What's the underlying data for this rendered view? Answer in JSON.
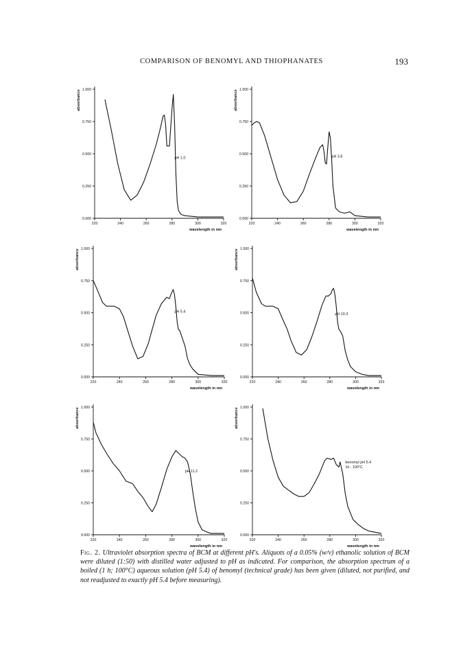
{
  "header": {
    "running_title": "COMPARISON OF BENOMYL AND THIOPHANATES",
    "page_number": "193"
  },
  "caption": {
    "label": "Fig. 2.",
    "text": "Ultraviolet absorption spectra of BCM at different pH's. Aliquots of a 0.05% (w/v) ethanolic solution of BCM were diluted (1:50) with distilled water adjusted to pH as indicated. For comparison, the absorption spectrum of a boiled (1 h; 100°C) aqueous solution (pH 5.4) of benomyl (technical grade) has been given (diluted, not purified, and not readjusted to exactly pH 5.4 before measuring)."
  },
  "style": {
    "line_color": "#111111",
    "axis_color": "#111111"
  },
  "chart_data": [
    {
      "type": "line",
      "panel": "top-left",
      "ylabel": "absorbance",
      "xlabel": "wavelength in nm",
      "xlim": [
        220,
        320
      ],
      "ylim": [
        0,
        1
      ],
      "x_ticks": [
        "220",
        "240",
        "260",
        "280",
        "300",
        "320"
      ],
      "y_ticks": [
        "0.000",
        "0.250",
        "0.500",
        "0.750",
        "1.000"
      ],
      "annotation": [
        "pH 1.0"
      ],
      "annotation_at": [
        282,
        0.46
      ],
      "series": [
        {
          "x": [
            228,
            233,
            238,
            243,
            248,
            253,
            258,
            263,
            268,
            271,
            273,
            274,
            275,
            276,
            278,
            280,
            281,
            282,
            283,
            284,
            285,
            287,
            290,
            300,
            310,
            320
          ],
          "y": [
            0.92,
            0.68,
            0.42,
            0.22,
            0.14,
            0.18,
            0.28,
            0.42,
            0.58,
            0.7,
            0.79,
            0.8,
            0.73,
            0.56,
            0.56,
            0.85,
            0.96,
            0.72,
            0.35,
            0.13,
            0.06,
            0.03,
            0.02,
            0.01,
            0.01,
            0.01
          ]
        }
      ]
    },
    {
      "type": "line",
      "panel": "top-right",
      "ylabel": "absorbance",
      "xlabel": "wavelength in nm",
      "xlim": [
        220,
        320
      ],
      "ylim": [
        0,
        1
      ],
      "x_ticks": [
        "220",
        "240",
        "260",
        "280",
        "300",
        "320"
      ],
      "y_ticks": [
        "0.000",
        "0.250",
        "0.500",
        "0.750",
        "1.000"
      ],
      "annotation": [
        "pH 3.8"
      ],
      "annotation_at": [
        282,
        0.47
      ],
      "series": [
        {
          "x": [
            220,
            222,
            224,
            226,
            230,
            235,
            240,
            245,
            250,
            255,
            260,
            265,
            270,
            273,
            275,
            276,
            277,
            278,
            279,
            280,
            281,
            282,
            283,
            285,
            288,
            292,
            296,
            300,
            310,
            320
          ],
          "y": [
            0.72,
            0.74,
            0.75,
            0.74,
            0.64,
            0.47,
            0.3,
            0.18,
            0.12,
            0.13,
            0.21,
            0.35,
            0.48,
            0.55,
            0.57,
            0.52,
            0.43,
            0.42,
            0.55,
            0.67,
            0.62,
            0.45,
            0.25,
            0.08,
            0.05,
            0.04,
            0.05,
            0.02,
            0.01,
            0.01
          ]
        }
      ]
    },
    {
      "type": "line",
      "panel": "middle-left",
      "ylabel": "absorbance",
      "xlabel": "wavelength in nm",
      "xlim": [
        220,
        320
      ],
      "ylim": [
        0,
        1
      ],
      "x_ticks": [
        "220",
        "240",
        "260",
        "280",
        "300",
        "320"
      ],
      "y_ticks": [
        "0.000",
        "0.250",
        "0.500",
        "0.750",
        "1.000"
      ],
      "annotation": [
        "pH 5.4"
      ],
      "annotation_at": [
        282,
        0.5
      ],
      "series": [
        {
          "x": [
            220,
            223,
            227,
            230,
            233,
            236,
            240,
            243,
            246,
            250,
            254,
            258,
            262,
            265,
            268,
            272,
            276,
            278,
            280,
            281,
            282,
            283,
            284,
            285,
            286,
            287,
            288,
            290,
            292,
            294,
            296,
            300,
            310,
            320
          ],
          "y": [
            0.75,
            0.68,
            0.58,
            0.55,
            0.55,
            0.55,
            0.53,
            0.47,
            0.37,
            0.24,
            0.14,
            0.16,
            0.26,
            0.37,
            0.48,
            0.57,
            0.62,
            0.61,
            0.66,
            0.68,
            0.64,
            0.55,
            0.43,
            0.37,
            0.36,
            0.33,
            0.3,
            0.24,
            0.14,
            0.09,
            0.06,
            0.02,
            0.01,
            0.01
          ]
        }
      ]
    },
    {
      "type": "line",
      "panel": "middle-right",
      "ylabel": "absorbance",
      "xlabel": "wavelength in nm",
      "xlim": [
        220,
        320
      ],
      "ylim": [
        0,
        1
      ],
      "x_ticks": [
        "220",
        "240",
        "260",
        "280",
        "300",
        "320"
      ],
      "y_ticks": [
        "0.000",
        "0.250",
        "0.500",
        "0.750",
        "1.000"
      ],
      "annotation": [
        "pH 10.3"
      ],
      "annotation_at": [
        284,
        0.48
      ],
      "series": [
        {
          "x": [
            220,
            223,
            227,
            230,
            233,
            236,
            240,
            243,
            247,
            250,
            254,
            258,
            262,
            266,
            270,
            274,
            277,
            279,
            281,
            282,
            283,
            284,
            285,
            286,
            287,
            288,
            290,
            292,
            294,
            296,
            300,
            305,
            310,
            320
          ],
          "y": [
            0.77,
            0.66,
            0.57,
            0.55,
            0.55,
            0.55,
            0.53,
            0.46,
            0.37,
            0.28,
            0.19,
            0.17,
            0.21,
            0.31,
            0.43,
            0.56,
            0.63,
            0.63,
            0.65,
            0.68,
            0.69,
            0.64,
            0.55,
            0.43,
            0.37,
            0.36,
            0.32,
            0.2,
            0.13,
            0.08,
            0.04,
            0.02,
            0.01,
            0.01
          ]
        }
      ]
    },
    {
      "type": "line",
      "panel": "bottom-left",
      "ylabel": "absorbance",
      "xlabel": "wavelength in nm",
      "xlim": [
        220,
        320
      ],
      "ylim": [
        0,
        1
      ],
      "x_ticks": [
        "220",
        "240",
        "260",
        "280",
        "300",
        "320"
      ],
      "y_ticks": [
        "0.000",
        "0.250",
        "0.500",
        "0.750",
        "1.000"
      ],
      "annotation": [
        "pH 11.2"
      ],
      "annotation_at": [
        290,
        0.49
      ],
      "series": [
        {
          "x": [
            220,
            222,
            226,
            230,
            235,
            240,
            245,
            250,
            254,
            258,
            262,
            265,
            268,
            272,
            276,
            280,
            283,
            285,
            288,
            290,
            292,
            294,
            296,
            298,
            300,
            303,
            307,
            310,
            315,
            320
          ],
          "y": [
            0.88,
            0.8,
            0.71,
            0.64,
            0.56,
            0.5,
            0.42,
            0.4,
            0.34,
            0.29,
            0.22,
            0.18,
            0.24,
            0.37,
            0.51,
            0.61,
            0.66,
            0.64,
            0.61,
            0.6,
            0.57,
            0.48,
            0.33,
            0.2,
            0.1,
            0.04,
            0.02,
            0.01,
            0.01,
            0.01
          ]
        }
      ]
    },
    {
      "type": "line",
      "panel": "bottom-right",
      "ylabel": "absorbance",
      "xlabel": "wavelength in nm",
      "xlim": [
        220,
        320
      ],
      "ylim": [
        0,
        1
      ],
      "x_ticks": [
        "220",
        "240",
        "260",
        "280",
        "300",
        "320"
      ],
      "y_ticks": [
        "0.000",
        "0.250",
        "0.500",
        "0.750",
        "1.000"
      ],
      "annotation": [
        "benomyl pH 5.4",
        "1h ; 100°C"
      ],
      "annotation_at": [
        292,
        0.56
      ],
      "series": [
        {
          "x": [
            228,
            232,
            236,
            240,
            244,
            248,
            252,
            256,
            260,
            264,
            268,
            272,
            276,
            278,
            281,
            283,
            285,
            287,
            288,
            290,
            292,
            294,
            296,
            298,
            302,
            306,
            310,
            315,
            320
          ],
          "y": [
            0.99,
            0.75,
            0.58,
            0.45,
            0.38,
            0.35,
            0.32,
            0.3,
            0.3,
            0.33,
            0.4,
            0.48,
            0.58,
            0.6,
            0.59,
            0.6,
            0.55,
            0.53,
            0.57,
            0.48,
            0.32,
            0.22,
            0.17,
            0.12,
            0.08,
            0.05,
            0.03,
            0.02,
            0.01
          ]
        }
      ]
    }
  ]
}
